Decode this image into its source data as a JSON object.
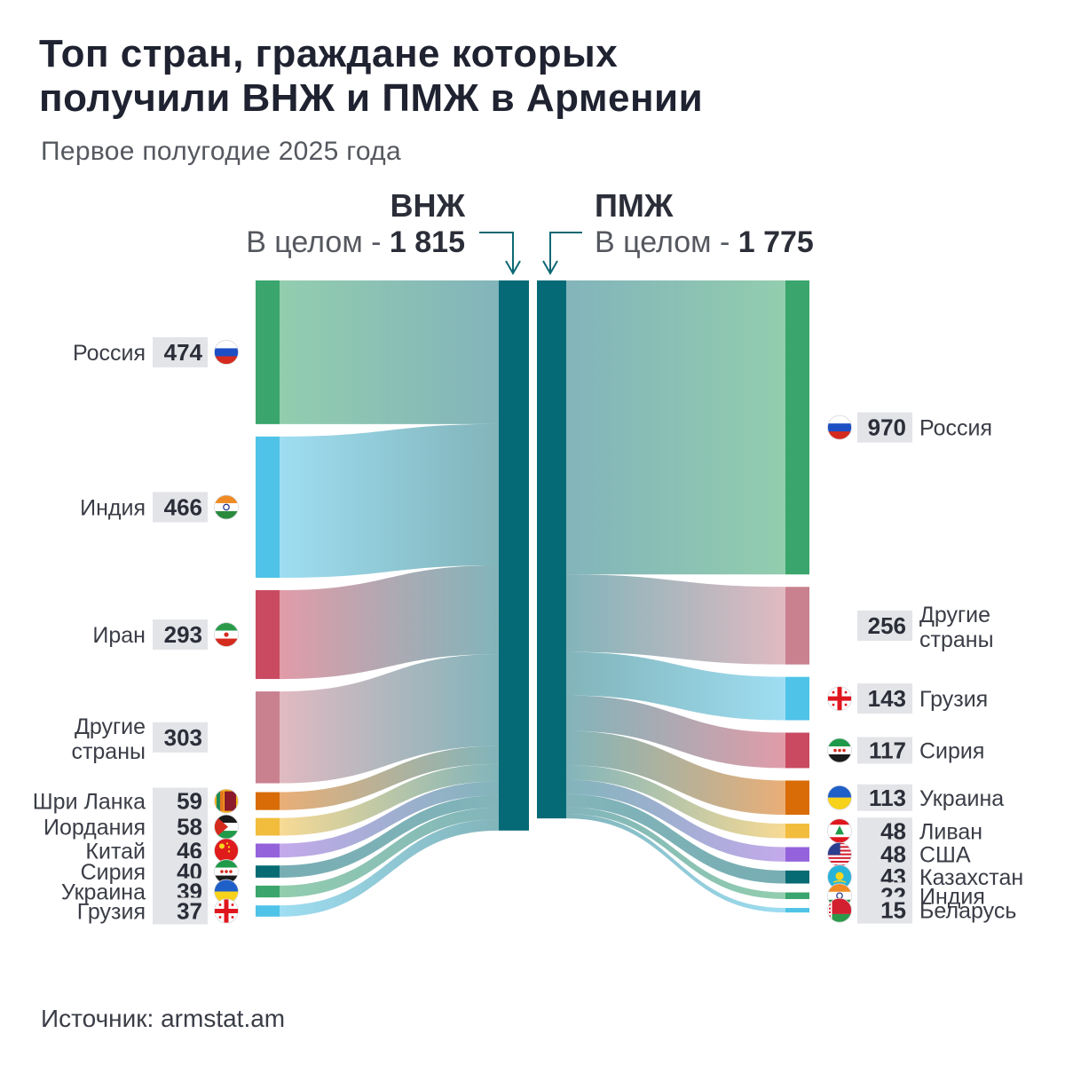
{
  "title": [
    "Топ стран, граждане которых",
    "получили ВНЖ и ПМЖ в Армении"
  ],
  "subtitle": "Первое полугодие 2025 года",
  "source": "Источник: armstat.am",
  "colors": {
    "dark_bar": "#066a76",
    "russia": "#3aa56c",
    "india": "#4fc3e8",
    "iran": "#c94a61",
    "other": "#c9818f",
    "srilanka": "#d96c07",
    "jordan": "#f2bc3c",
    "china": "#9463dc",
    "syria": "#076b74",
    "ukraine": "#3aa56c",
    "georgia": "#4fc3e8",
    "label_bg": "#e3e4e8"
  },
  "chart_data": {
    "type": "sankey",
    "left_node": {
      "label": "ВНЖ",
      "total_prefix": "В целом - ",
      "total": "1 815",
      "total_value": 1815
    },
    "right_node": {
      "label": "ПМЖ",
      "total_prefix": "В целом - ",
      "total": "1 775",
      "total_value": 1775
    },
    "left_sources": [
      {
        "name": "Россия",
        "value": 474,
        "color": "russia",
        "flag": "flag-russia-icon"
      },
      {
        "name": "Индия",
        "value": 466,
        "color": "india",
        "flag": "flag-india-icon"
      },
      {
        "name": "Иран",
        "value": 293,
        "color": "iran",
        "flag": "flag-iran-icon"
      },
      {
        "name": "Другие страны",
        "value": 303,
        "color": "other",
        "flag": ""
      },
      {
        "name": "Шри Ланка",
        "value": 59,
        "color": "srilanka",
        "flag": "flag-sri-lanka-icon"
      },
      {
        "name": "Иордания",
        "value": 58,
        "color": "jordan",
        "flag": "flag-jordan-icon"
      },
      {
        "name": "Китай",
        "value": 46,
        "color": "china",
        "flag": "flag-china-icon"
      },
      {
        "name": "Сирия",
        "value": 40,
        "color": "syria",
        "flag": "flag-syria-icon"
      },
      {
        "name": "Украина",
        "value": 39,
        "color": "ukraine",
        "flag": "flag-ukraine-icon"
      },
      {
        "name": "Грузия",
        "value": 37,
        "color": "georgia",
        "flag": "flag-georgia-icon"
      }
    ],
    "right_targets": [
      {
        "name": "Россия",
        "value": 970,
        "color": "russia",
        "flag": "flag-russia-icon"
      },
      {
        "name": "Другие страны",
        "value": 256,
        "color": "other",
        "flag": ""
      },
      {
        "name": "Грузия",
        "value": 143,
        "color": "india",
        "flag": "flag-georgia-icon"
      },
      {
        "name": "Сирия",
        "value": 117,
        "color": "iran",
        "flag": "flag-syria-icon"
      },
      {
        "name": "Украина",
        "value": 113,
        "color": "srilanka",
        "flag": "flag-ukraine-icon"
      },
      {
        "name": "Ливан",
        "value": 48,
        "color": "jordan",
        "flag": "flag-lebanon-icon"
      },
      {
        "name": "США",
        "value": 48,
        "color": "china",
        "flag": "flag-usa-icon"
      },
      {
        "name": "Казахстан",
        "value": 43,
        "color": "syria",
        "flag": "flag-kazakhstan-icon"
      },
      {
        "name": "Индия",
        "value": 22,
        "color": "ukraine",
        "flag": "flag-india-icon"
      },
      {
        "name": "Беларусь",
        "value": 15,
        "color": "georgia",
        "flag": "flag-belarus-icon"
      }
    ]
  }
}
